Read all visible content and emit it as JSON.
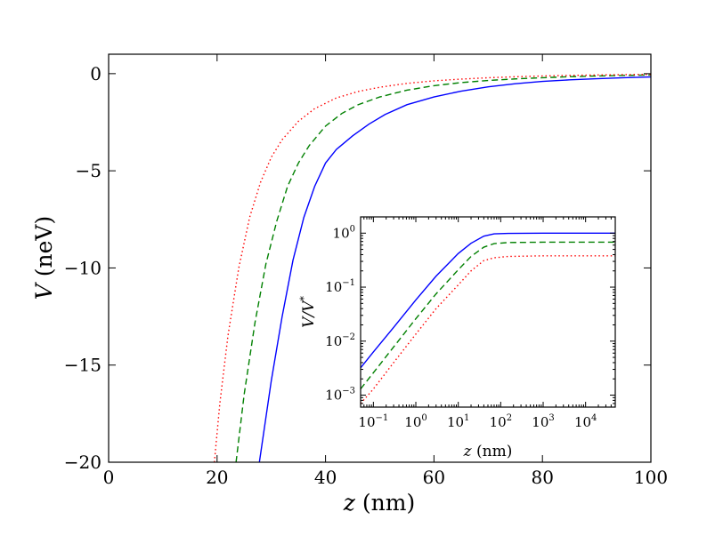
{
  "chart_data": [
    {
      "type": "line",
      "title": "",
      "xlabel": "z (nm)",
      "ylabel": "V (neV)",
      "xlabel_var": "z",
      "xlabel_unit": " (nm)",
      "ylabel_var": "V",
      "ylabel_unit": " (neV)",
      "xlim": [
        0,
        100
      ],
      "ylim": [
        -20,
        1
      ],
      "x_ticks": [
        0,
        20,
        40,
        60,
        80,
        100
      ],
      "x_tick_labels": [
        "0",
        "20",
        "40",
        "60",
        "80",
        "100"
      ],
      "y_ticks": [
        0,
        -5,
        -10,
        -15,
        -20
      ],
      "y_tick_labels": [
        "0",
        "−5",
        "−10",
        "−15",
        "−20"
      ],
      "grid": false,
      "series": [
        {
          "color": "#0000ff",
          "dash": "solid",
          "x": [
            27.8,
            30,
            32,
            34,
            36,
            38,
            40,
            42,
            45,
            48,
            51,
            55,
            60,
            65,
            70,
            75,
            80,
            85,
            90,
            95,
            100
          ],
          "y": [
            -20,
            -15.8,
            -12.5,
            -9.6,
            -7.4,
            -5.8,
            -4.6,
            -3.9,
            -3.2,
            -2.6,
            -2.1,
            -1.6,
            -1.2,
            -0.9,
            -0.68,
            -0.52,
            -0.4,
            -0.32,
            -0.26,
            -0.21,
            -0.17
          ]
        },
        {
          "color": "#008000",
          "dash": "dashed",
          "x": [
            23.5,
            25,
            27,
            29,
            31,
            33,
            35,
            37,
            40,
            43,
            46,
            50,
            55,
            60,
            65,
            70,
            75,
            80,
            85,
            90,
            95,
            100
          ],
          "y": [
            -20,
            -16.5,
            -12.8,
            -9.8,
            -7.6,
            -5.8,
            -4.6,
            -3.7,
            -2.7,
            -2.05,
            -1.6,
            -1.2,
            -0.85,
            -0.62,
            -0.46,
            -0.35,
            -0.27,
            -0.21,
            -0.16,
            -0.12,
            -0.09,
            -0.07
          ]
        },
        {
          "color": "#ff0000",
          "dash": "dotted",
          "x": [
            19.5,
            20.5,
            22,
            24,
            26,
            28,
            30,
            32,
            35,
            38,
            42,
            46,
            50,
            55,
            60,
            65,
            70,
            75,
            80,
            85,
            90,
            95,
            100
          ],
          "y": [
            -20,
            -17,
            -13.5,
            -10,
            -7.4,
            -5.6,
            -4.3,
            -3.4,
            -2.45,
            -1.8,
            -1.25,
            -0.92,
            -0.7,
            -0.5,
            -0.37,
            -0.28,
            -0.21,
            -0.16,
            -0.12,
            -0.09,
            -0.07,
            -0.05,
            -0.04
          ]
        }
      ]
    },
    {
      "type": "line",
      "title": "",
      "xlabel": "z (nm)",
      "ylabel": "V/V*",
      "xlabel_var": "z",
      "xlabel_unit": " (nm)",
      "ylabel_var": "V/V",
      "ylabel_sup": "*",
      "x_scale": "log",
      "y_scale": "log",
      "xlim": [
        0.05,
        50000
      ],
      "ylim": [
        0.0006,
        2
      ],
      "x_ticks": [
        0.1,
        1,
        10,
        100,
        1000,
        10000
      ],
      "x_tick_labels": [
        {
          "base": "10",
          "exp": "-1"
        },
        {
          "base": "10",
          "exp": "0"
        },
        {
          "base": "10",
          "exp": "1"
        },
        {
          "base": "10",
          "exp": "2"
        },
        {
          "base": "10",
          "exp": "3"
        },
        {
          "base": "10",
          "exp": "4"
        }
      ],
      "y_ticks": [
        0.001,
        0.01,
        0.1,
        1
      ],
      "y_tick_labels": [
        {
          "base": "10",
          "exp": "-3"
        },
        {
          "base": "10",
          "exp": "-2"
        },
        {
          "base": "10",
          "exp": "-1"
        },
        {
          "base": "10",
          "exp": "0"
        }
      ],
      "grid": false,
      "series": [
        {
          "color": "#0000ff",
          "dash": "solid",
          "x": [
            0.05,
            0.1,
            0.3,
            1,
            3,
            10,
            20,
            40,
            70,
            150,
            1000,
            10000,
            50000
          ],
          "y": [
            0.0032,
            0.0063,
            0.018,
            0.058,
            0.16,
            0.42,
            0.65,
            0.88,
            0.97,
            0.99,
            1.0,
            1.0,
            1.0
          ]
        },
        {
          "color": "#008000",
          "dash": "dashed",
          "x": [
            0.05,
            0.1,
            0.3,
            1,
            3,
            10,
            20,
            40,
            70,
            150,
            1000,
            10000,
            50000
          ],
          "y": [
            0.0013,
            0.0026,
            0.0078,
            0.026,
            0.075,
            0.21,
            0.37,
            0.55,
            0.64,
            0.67,
            0.68,
            0.68,
            0.68
          ]
        },
        {
          "color": "#ff0000",
          "dash": "dotted",
          "x": [
            0.05,
            0.1,
            0.3,
            1,
            3,
            10,
            20,
            40,
            70,
            150,
            1000,
            10000,
            50000
          ],
          "y": [
            0.0007,
            0.0013,
            0.004,
            0.0135,
            0.04,
            0.11,
            0.2,
            0.31,
            0.35,
            0.37,
            0.38,
            0.38,
            0.38
          ]
        }
      ]
    }
  ]
}
